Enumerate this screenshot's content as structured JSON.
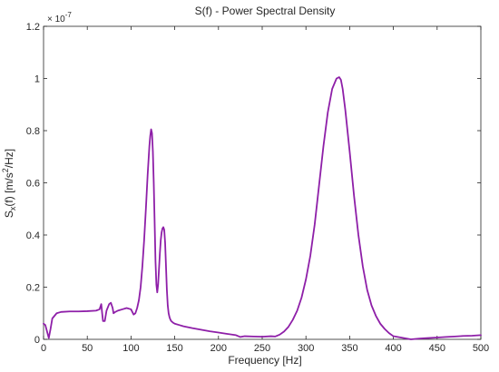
{
  "chart_data": {
    "type": "line",
    "title": "S(f) - Power Spectral Density",
    "xlabel": "Frequency [Hz]",
    "ylabel": {
      "base": "S",
      "sub": "x",
      "main": "(f) [m/s",
      "sup": "2",
      "tail": "/Hz]"
    },
    "y_exponent_label": {
      "base": "× 10",
      "sup": "-7"
    },
    "xlim": [
      0,
      500
    ],
    "ylim": [
      0,
      1.2
    ],
    "y_scale_factor": "1e-7",
    "x_ticks": [
      0,
      50,
      100,
      150,
      200,
      250,
      300,
      350,
      400,
      450,
      500
    ],
    "x_tick_labels": [
      "0",
      "50",
      "100",
      "150",
      "200",
      "250",
      "300",
      "350",
      "400",
      "450",
      "500"
    ],
    "y_ticks": [
      0,
      0.2,
      0.4,
      0.6,
      0.8,
      1.0,
      1.2
    ],
    "y_tick_labels": [
      "0",
      "0.2",
      "0.4",
      "0.6",
      "0.8",
      "1",
      "1.2"
    ],
    "grid": false,
    "legend": "none",
    "line_color": "#8e1fa8",
    "series": [
      {
        "x": [
          0,
          2,
          4,
          6,
          8,
          10,
          15,
          20,
          30,
          40,
          50,
          60,
          64,
          66,
          67,
          68,
          70,
          72,
          75,
          77,
          79,
          80,
          82,
          85,
          90,
          95,
          100,
          103,
          105,
          107,
          109,
          111,
          113,
          115,
          117,
          119,
          121,
          122,
          123,
          124,
          125,
          126,
          127,
          128,
          129,
          130,
          131,
          132,
          133,
          134,
          135,
          136,
          137,
          138,
          139,
          140,
          141,
          142,
          143,
          144,
          145,
          146,
          148,
          150,
          155,
          160,
          170,
          180,
          190,
          200,
          210,
          220,
          225,
          230,
          240,
          250,
          260,
          265,
          270,
          275,
          280,
          285,
          290,
          295,
          300,
          305,
          310,
          315,
          320,
          325,
          330,
          335,
          338,
          340,
          342,
          345,
          350,
          355,
          360,
          365,
          370,
          375,
          380,
          385,
          390,
          395,
          400,
          410,
          420,
          430,
          440,
          450,
          460,
          470,
          480,
          490,
          500
        ],
        "y": [
          0.06,
          0.055,
          0.03,
          0.005,
          0.04,
          0.08,
          0.1,
          0.105,
          0.107,
          0.107,
          0.108,
          0.11,
          0.115,
          0.135,
          0.1,
          0.07,
          0.07,
          0.11,
          0.135,
          0.14,
          0.12,
          0.1,
          0.105,
          0.11,
          0.115,
          0.12,
          0.115,
          0.095,
          0.1,
          0.12,
          0.15,
          0.2,
          0.28,
          0.38,
          0.5,
          0.63,
          0.74,
          0.78,
          0.805,
          0.79,
          0.72,
          0.6,
          0.45,
          0.3,
          0.21,
          0.18,
          0.21,
          0.27,
          0.33,
          0.38,
          0.41,
          0.425,
          0.43,
          0.42,
          0.37,
          0.28,
          0.19,
          0.13,
          0.1,
          0.085,
          0.076,
          0.07,
          0.064,
          0.06,
          0.055,
          0.05,
          0.043,
          0.037,
          0.031,
          0.026,
          0.021,
          0.016,
          0.009,
          0.012,
          0.011,
          0.01,
          0.012,
          0.011,
          0.018,
          0.03,
          0.048,
          0.075,
          0.11,
          0.16,
          0.23,
          0.32,
          0.44,
          0.59,
          0.74,
          0.87,
          0.96,
          1.0,
          1.005,
          0.995,
          0.96,
          0.88,
          0.72,
          0.55,
          0.4,
          0.28,
          0.19,
          0.13,
          0.09,
          0.06,
          0.04,
          0.024,
          0.012,
          0.006,
          0.0,
          0.003,
          0.005,
          0.007,
          0.009,
          0.011,
          0.013,
          0.014,
          0.016
        ]
      }
    ]
  }
}
